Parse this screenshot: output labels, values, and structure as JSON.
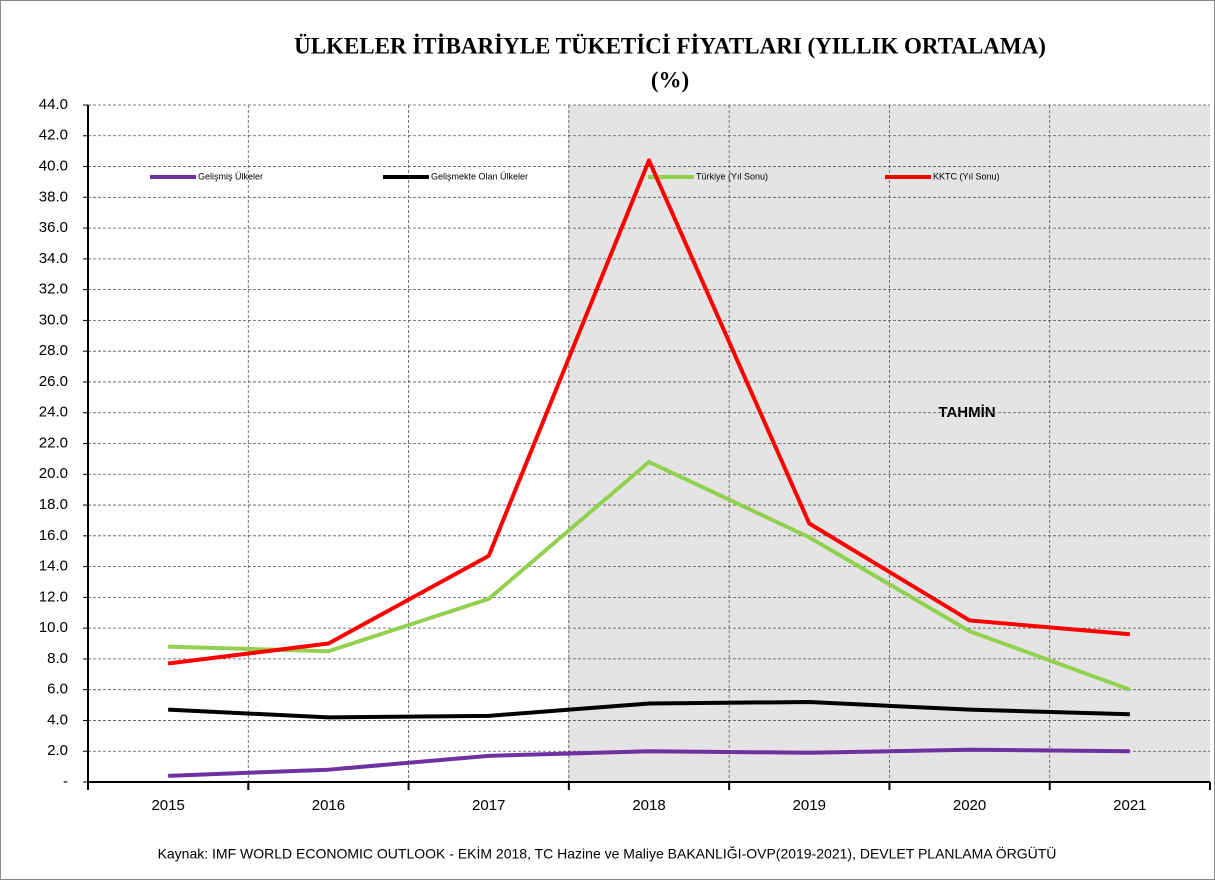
{
  "chart_data": {
    "type": "line",
    "title": [
      "ÜLKELER İTİBARİYLE TÜKETİCİ FİYATLARI (YILLIK ORTALAMA)",
      "(%)"
    ],
    "categories": [
      "2015",
      "2016",
      "2017",
      "2018",
      "2019",
      "2020",
      "2021"
    ],
    "series": [
      {
        "name": "Gelişmiş Ülkeler",
        "color": "#7030a0",
        "values": [
          0.4,
          0.8,
          1.7,
          2.0,
          1.9,
          2.1,
          2.0
        ]
      },
      {
        "name": "Gelişmekte Olan Ülkeler",
        "color": "#000000",
        "values": [
          4.7,
          4.2,
          4.3,
          5.1,
          5.2,
          4.7,
          4.4
        ]
      },
      {
        "name": "Türkiye (Yıl Sonu)",
        "color": "#92d050",
        "values": [
          8.8,
          8.5,
          11.9,
          20.8,
          15.9,
          9.8,
          6.0
        ]
      },
      {
        "name": "KKTC (Yıl Sonu)",
        "color": "#ff0000",
        "values": [
          7.7,
          9.0,
          14.7,
          40.4,
          16.8,
          10.5,
          9.6
        ]
      }
    ],
    "ylim": [
      0,
      44
    ],
    "yticks": [
      {
        "value": 0,
        "label": "-"
      },
      {
        "value": 2,
        "label": "2.0"
      },
      {
        "value": 4,
        "label": "4.0"
      },
      {
        "value": 6,
        "label": "6.0"
      },
      {
        "value": 8,
        "label": "8.0"
      },
      {
        "value": 10,
        "label": "10.0"
      },
      {
        "value": 12,
        "label": "12.0"
      },
      {
        "value": 14,
        "label": "14.0"
      },
      {
        "value": 16,
        "label": "16.0"
      },
      {
        "value": 18,
        "label": "18.0"
      },
      {
        "value": 20,
        "label": "20.0"
      },
      {
        "value": 22,
        "label": "22.0"
      },
      {
        "value": 24,
        "label": "24.0"
      },
      {
        "value": 26,
        "label": "26.0"
      },
      {
        "value": 28,
        "label": "28.0"
      },
      {
        "value": 30,
        "label": "30.0"
      },
      {
        "value": 32,
        "label": "32.0"
      },
      {
        "value": 34,
        "label": "34.0"
      },
      {
        "value": 36,
        "label": "36.0"
      },
      {
        "value": 38,
        "label": "38.0"
      },
      {
        "value": 40,
        "label": "40.0"
      },
      {
        "value": 42,
        "label": "42.0"
      },
      {
        "value": 44,
        "label": "44.0"
      }
    ],
    "grid": true,
    "annotation": "TAHMİN",
    "source": "Kaynak: IMF WORLD ECONOMIC OUTLOOK - EKİM 2018, TC Hazine ve Maliye BAKANLIĞI-OVP(2019-2021), DEVLET PLANLAMA ÖRGÜTÜ"
  }
}
